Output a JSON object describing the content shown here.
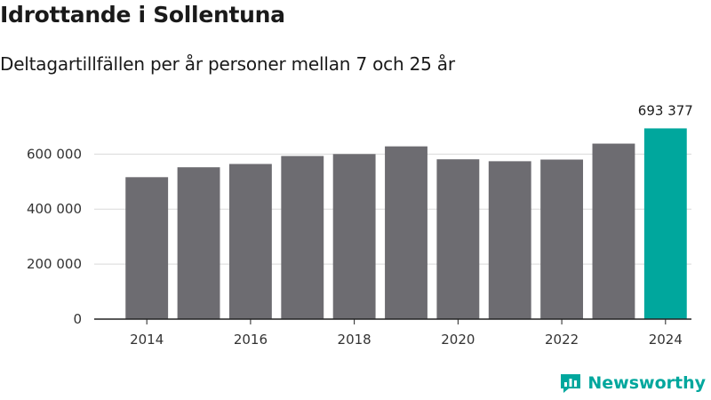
{
  "header": {
    "title": "Idrottande i Sollentuna",
    "subtitle": "Deltagartillfällen per år personer mellan 7 och 25 år"
  },
  "brand": {
    "name": "Newsworthy"
  },
  "colors": {
    "bar": "#6d6c71",
    "highlight": "#00a79d",
    "grid": "#d9d9d9",
    "axis": "#222222"
  },
  "chart_data": {
    "type": "bar",
    "title": "Idrottande i Sollentuna",
    "subtitle": "Deltagartillfällen per år personer mellan 7 och 25 år",
    "categories": [
      "2014",
      "2015",
      "2016",
      "2017",
      "2018",
      "2019",
      "2020",
      "2021",
      "2022",
      "2023",
      "2024"
    ],
    "values": [
      516000,
      552000,
      564000,
      593000,
      600000,
      628000,
      581000,
      574000,
      580000,
      638000,
      693377
    ],
    "highlight_index": 10,
    "highlight_label": "693 377",
    "xticks": [
      "2014",
      "2016",
      "2018",
      "2020",
      "2022",
      "2024"
    ],
    "yticks": [
      0,
      200000,
      400000,
      600000
    ],
    "ytick_labels": [
      "0",
      "200 000",
      "400 000",
      "600 000"
    ],
    "ylim": [
      0,
      740000
    ],
    "xlabel": "",
    "ylabel": "",
    "grid": true
  }
}
